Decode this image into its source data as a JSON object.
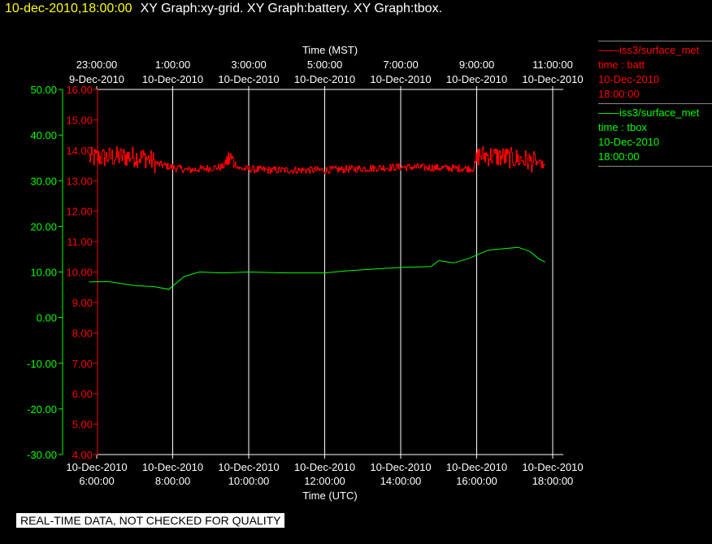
{
  "header": {
    "timestamp": "10-dec-2010,18:00:00",
    "graphs": "XY Graph:xy-grid.  XY Graph:battery.  XY Graph:tbox."
  },
  "legend": [
    {
      "line1": "——iss3/surface_met",
      "line2": "time : batt",
      "line3": "10-Dec-2010",
      "line4": "18:00:00",
      "color": "#ff0000"
    },
    {
      "line1": "——iss3/surface_met",
      "line2": "time : tbox",
      "line3": "10-Dec-2010",
      "line4": "18:00:00",
      "color": "#00ff00"
    }
  ],
  "notice": "REAL-TIME DATA, NOT CHECKED FOR QUALITY",
  "colors": {
    "batt": "#ff0000",
    "tbox": "#00ff00",
    "grid": "#ffffff",
    "text": "#ffffff"
  },
  "chart_data": {
    "type": "line",
    "top_axis": {
      "label": "Time (MST)",
      "ticks": [
        {
          "time": "23:00:00",
          "date": "9-Dec-2010"
        },
        {
          "time": "1:00:00",
          "date": "10-Dec-2010"
        },
        {
          "time": "3:00:00",
          "date": "10-Dec-2010"
        },
        {
          "time": "5:00:00",
          "date": "10-Dec-2010"
        },
        {
          "time": "7:00:00",
          "date": "10-Dec-2010"
        },
        {
          "time": "9:00:00",
          "date": "10-Dec-2010"
        },
        {
          "time": "11:00:00",
          "date": "10-Dec-2010"
        }
      ]
    },
    "bottom_axis": {
      "label": "Time (UTC)",
      "range_hours": [
        6,
        18
      ],
      "ticks": [
        {
          "date": "10-Dec-2010",
          "time": "6:00:00"
        },
        {
          "date": "10-Dec-2010",
          "time": "8:00:00"
        },
        {
          "date": "10-Dec-2010",
          "time": "10:00:00"
        },
        {
          "date": "10-Dec-2010",
          "time": "12:00:00"
        },
        {
          "date": "10-Dec-2010",
          "time": "14:00:00"
        },
        {
          "date": "10-Dec-2010",
          "time": "16:00:00"
        },
        {
          "date": "10-Dec-2010",
          "time": "18:00:00"
        }
      ]
    },
    "y_left": {
      "range": [
        -30,
        50
      ],
      "ticks": [
        "50.00",
        "40.00",
        "30.00",
        "20.00",
        "10.00",
        "0.00",
        "-10.00",
        "-20.00",
        "-30.00"
      ]
    },
    "y_right": {
      "range": [
        4,
        16
      ],
      "ticks": [
        "16.00",
        "15.00",
        "14.00",
        "13.00",
        "12.00",
        "11.00",
        "10.00",
        "9.00",
        "8.00",
        "7.00",
        "6.00",
        "5.00",
        "4.00"
      ]
    },
    "grid": "vertical",
    "series": [
      {
        "name": "time : batt",
        "axis": "right",
        "noisy": true,
        "x": [
          5.8,
          6.9,
          7.3,
          7.6,
          7.95,
          8.4,
          9.3,
          9.5,
          9.75,
          10.5,
          12,
          14,
          15.9,
          16.05,
          16.5,
          17.2,
          17.7,
          17.8
        ],
        "y": [
          13.75,
          13.8,
          13.75,
          13.55,
          13.45,
          13.35,
          13.45,
          13.75,
          13.4,
          13.35,
          13.35,
          13.45,
          13.4,
          13.85,
          13.8,
          13.7,
          13.55,
          13.45
        ]
      },
      {
        "name": "time : tbox",
        "axis": "left",
        "x": [
          5.8,
          6.3,
          7.0,
          7.5,
          7.9,
          8.3,
          8.7,
          9.3,
          10.0,
          11.0,
          12.0,
          12.5,
          13.0,
          14.0,
          14.8,
          15.0,
          15.4,
          15.8,
          16.3,
          16.7,
          17.1,
          17.4,
          17.65,
          17.8
        ],
        "y": [
          7.8,
          7.9,
          7.0,
          6.8,
          6.2,
          9.0,
          10.0,
          9.8,
          10.0,
          9.8,
          9.8,
          10.2,
          10.5,
          11.0,
          11.2,
          12.5,
          12.0,
          13.0,
          14.8,
          15.1,
          15.4,
          14.5,
          12.8,
          12.2
        ]
      }
    ]
  }
}
